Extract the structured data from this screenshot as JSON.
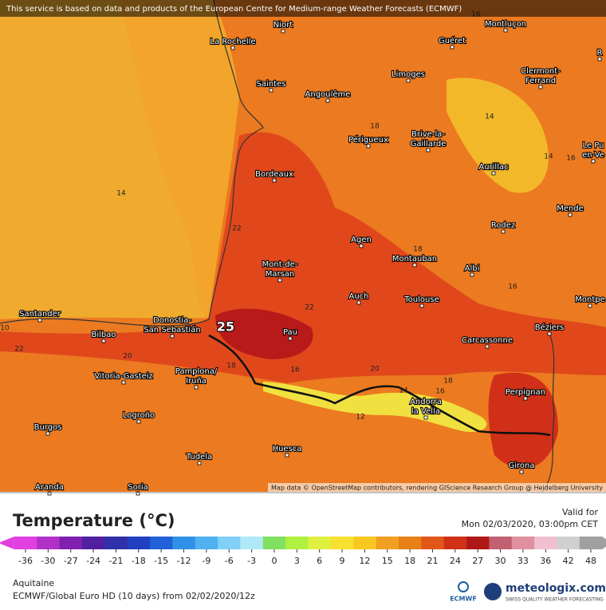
{
  "header": {
    "notice": "This service is based on data and products of the European Centre for Medium-range Weather Forecasts (ECMWF)"
  },
  "map": {
    "cities": [
      [
        "Niort"
      ],
      [
        "La Rochelle"
      ],
      [
        "Guéret"
      ],
      [
        "Montluçon"
      ],
      [
        "Saintes"
      ],
      [
        "Angoulême"
      ],
      [
        "Limoges"
      ],
      [
        "Clermont-",
        "Ferrand"
      ],
      [
        "Périgueux"
      ],
      [
        "Brive-la-",
        "Gaillarde"
      ],
      [
        "Aurillac"
      ],
      [
        "Le Pu",
        "en-Ve"
      ],
      [
        "Bordeaux"
      ],
      [
        "Mende"
      ],
      [
        "Rodez"
      ],
      [
        "Agen"
      ],
      [
        "Montauban"
      ],
      [
        "Albi"
      ],
      [
        "Mont-de-",
        "Marsan"
      ],
      [
        "Auch"
      ],
      [
        "Toulouse"
      ],
      [
        "Montpe"
      ],
      [
        "Santander"
      ],
      [
        "Bilbao"
      ],
      [
        "Donostia-",
        "San Sebastián"
      ],
      [
        "Pau"
      ],
      [
        "Carcassonne"
      ],
      [
        "Béziers"
      ],
      [
        "Vitoria-Gasteiz"
      ],
      [
        "Pamplona/",
        "Iruña"
      ],
      [
        "Perpignan"
      ],
      [
        "Andorra",
        "la Vella"
      ],
      [
        "Burgos"
      ],
      [
        "Logroño"
      ],
      [
        "Huesca"
      ],
      [
        "Tudela"
      ],
      [
        "Girona"
      ],
      [
        "Aranda"
      ],
      [
        "Soria"
      ],
      [
        "R"
      ]
    ],
    "contour_labels": [
      14,
      16,
      14,
      14,
      16,
      18,
      22,
      18,
      16,
      22,
      25,
      20,
      22,
      10,
      18,
      16,
      20,
      14,
      16,
      18,
      12
    ],
    "attribution": "Map data © OpenStreetMap contributors, rendering GIScience Research Group @ Heidelberg University"
  },
  "legend": {
    "title": "Temperature (°C)",
    "ticks": [
      -36,
      -30,
      -27,
      -24,
      -21,
      -18,
      -15,
      -12,
      -9,
      -6,
      -3,
      0,
      3,
      6,
      9,
      12,
      15,
      18,
      21,
      24,
      27,
      30,
      33,
      36,
      42,
      48
    ],
    "colors": [
      "#e040e0",
      "#b030c8",
      "#8020b0",
      "#5020a0",
      "#3030a8",
      "#2040c0",
      "#2060d8",
      "#3090e8",
      "#50b0f0",
      "#80d0f8",
      "#b0e8f8",
      "#80e060",
      "#b0f040",
      "#e0f040",
      "#f8e030",
      "#f8c820",
      "#f0a020",
      "#e88018",
      "#e05818",
      "#d03018",
      "#b01818",
      "#c06070",
      "#e090a0",
      "#f0c0d0",
      "#d0d0d0",
      "#a0a0a0"
    ]
  },
  "footer": {
    "valid_label": "Valid for",
    "valid_time": "Mon 02/03/2020, 03:00pm CET",
    "region": "Aquitaine",
    "model": "ECMWF/Global Euro HD (10 days) from 02/02/2020/12z",
    "ecmwf": "ECMWF",
    "brand": "meteologix.com",
    "slogan": "SWISS QUALITY WEATHER FORECASTING"
  }
}
